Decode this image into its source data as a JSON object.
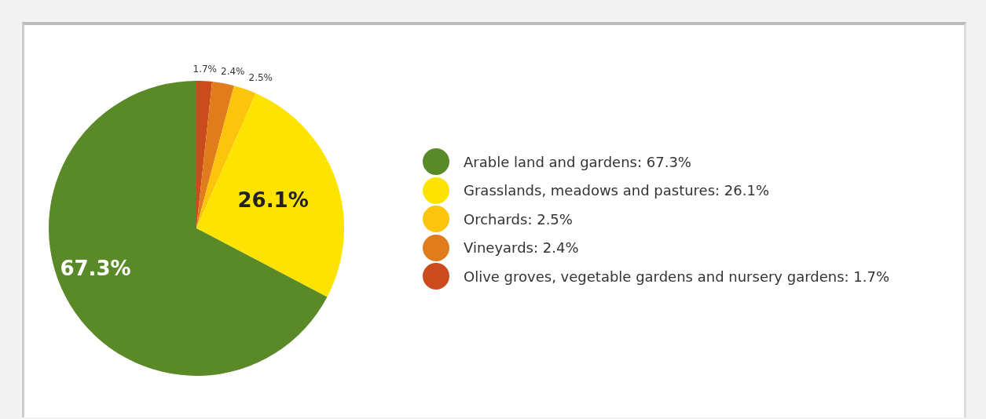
{
  "chart_data": {
    "type": "pie",
    "categories": [
      "Arable land and gardens: 67.3%",
      "Grasslands, meadows and pastures: 26.1%",
      "Orchards: 2.5%",
      "Vineyards: 2.4%",
      "Olive groves, vegetable gardens and nursery gardens: 1.7%"
    ],
    "values": [
      67.3,
      26.1,
      2.5,
      2.4,
      1.7
    ],
    "colors": [
      "#5a8a28",
      "#fde400",
      "#fcc40a",
      "#e07c1c",
      "#cc4b1c"
    ],
    "value_labels": [
      "67.3%",
      "26.1%",
      "2.5%",
      "2.4%",
      "1.7%"
    ],
    "legend": "right"
  }
}
